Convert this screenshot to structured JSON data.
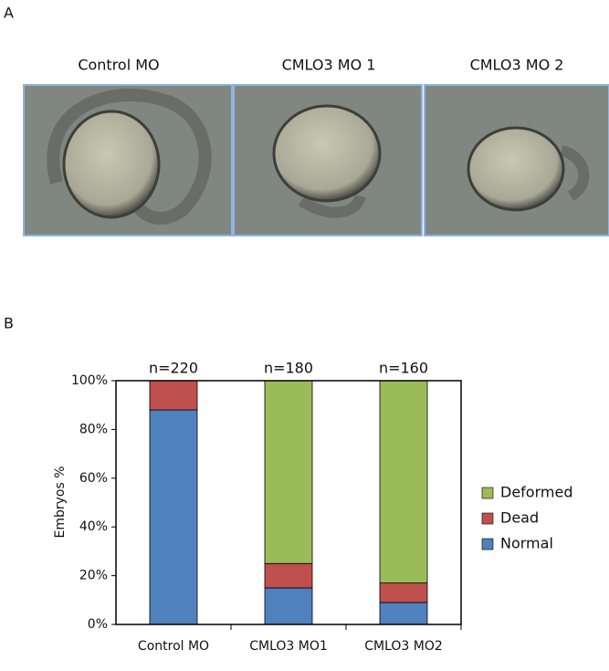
{
  "panel_a": {
    "label": "A",
    "captions": [
      "Control MO",
      "CMLO3 MO 1",
      "CMLO3 MO 2"
    ]
  },
  "panel_b": {
    "label": "B"
  },
  "chart_data": {
    "type": "stacked_bar",
    "categories": [
      "Control MO",
      "CMLO3 MO1",
      "CMLO3 MO2"
    ],
    "annotations": [
      "n=220",
      "n=180",
      "n=160"
    ],
    "ylabel": "Embryos %",
    "series": [
      {
        "name": "Normal",
        "color": "#4f81bd",
        "values": [
          88,
          15,
          9
        ]
      },
      {
        "name": "Dead",
        "color": "#c0504d",
        "values": [
          12,
          10,
          8
        ]
      },
      {
        "name": "Deformed",
        "color": "#9bbb59",
        "values": [
          0,
          75,
          83
        ]
      }
    ],
    "ylim": [
      0,
      100
    ],
    "yticks": [
      {
        "value": 0,
        "label": "0%"
      },
      {
        "value": 20,
        "label": "20%"
      },
      {
        "value": 40,
        "label": "40%"
      },
      {
        "value": 60,
        "label": "60%"
      },
      {
        "value": 80,
        "label": "80%"
      },
      {
        "value": 100,
        "label": "100%"
      }
    ],
    "legend": "right"
  }
}
